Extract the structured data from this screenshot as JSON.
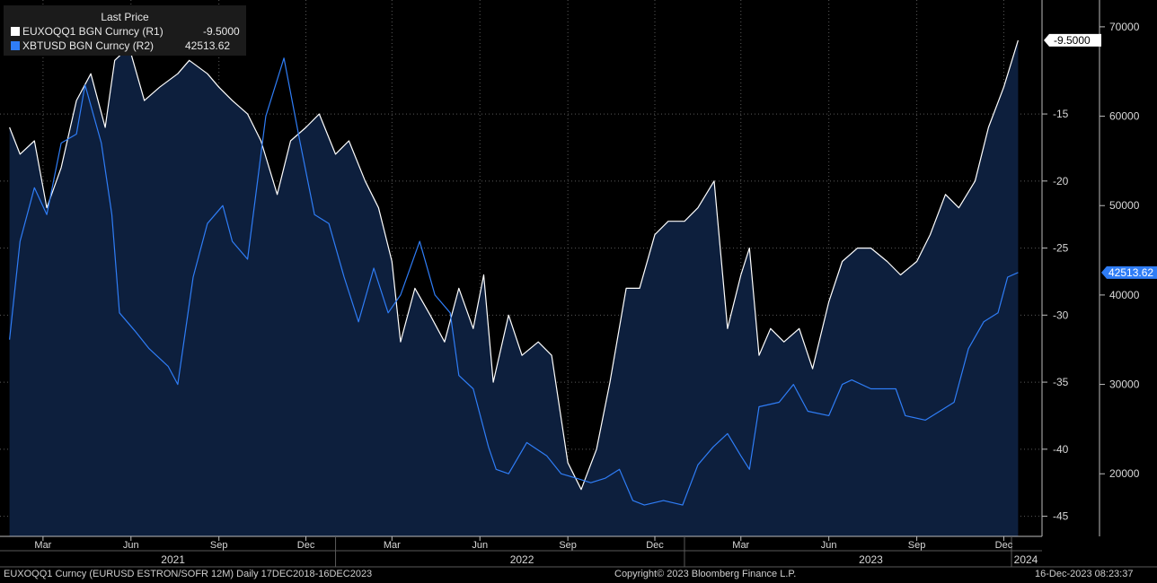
{
  "legend": {
    "header": "Last Price",
    "series1": {
      "label": "EUXOQQ1 BGN Curncy  (R1)",
      "value": "-9.5000",
      "color": "#ffffff"
    },
    "series2": {
      "label": "XBTUSD BGN Curncy  (R2)",
      "value": "42513.62",
      "color": "#2f7df6"
    }
  },
  "footer": {
    "left": "EUXOQQ1 Curncy (EURUSD  ESTRON/SOFR 12M)  Daily 17DEC2018-16DEC2023",
    "center": "Copyright© 2023 Bloomberg Finance L.P.",
    "right": "16-Dec-2023 08:23:37"
  },
  "chart_data": {
    "type": "line",
    "x_month_labels": [
      "Mar",
      "Jun",
      "Sep",
      "Dec",
      "Mar",
      "Jun",
      "Sep",
      "Dec",
      "Mar",
      "Jun",
      "Sep",
      "Dec"
    ],
    "x_year_labels": [
      "2021",
      "2022",
      "2023",
      "2024"
    ],
    "axes": {
      "R1": {
        "ticks": [
          -15,
          -20,
          -25,
          -30,
          -35,
          -40,
          -45
        ],
        "range": [
          -46.5,
          -6.5
        ],
        "last_value_label": "-9.5000"
      },
      "R2": {
        "ticks": [
          70000,
          60000,
          50000,
          40000,
          30000,
          20000
        ],
        "range": [
          13000,
          73000
        ],
        "last_value_label": "42513.62"
      }
    },
    "grid": true,
    "series": [
      {
        "name": "EUXOQQ1 BGN Curncy (R1)",
        "axis": "R1",
        "style": "area",
        "color": "#ffffff",
        "fill": "#0d1f3d",
        "dates": [
          "2021-01-25",
          "2021-02-05",
          "2021-02-20",
          "2021-03-05",
          "2021-03-20",
          "2021-04-05",
          "2021-04-20",
          "2021-05-05",
          "2021-05-15",
          "2021-05-30",
          "2021-06-15",
          "2021-07-01",
          "2021-07-20",
          "2021-08-01",
          "2021-08-20",
          "2021-09-01",
          "2021-09-15",
          "2021-10-01",
          "2021-10-15",
          "2021-11-01",
          "2021-11-15",
          "2021-12-01",
          "2021-12-15",
          "2022-01-01",
          "2022-01-15",
          "2022-02-01",
          "2022-02-15",
          "2022-03-01",
          "2022-03-10",
          "2022-03-25",
          "2022-04-10",
          "2022-04-25",
          "2022-05-10",
          "2022-05-25",
          "2022-06-05",
          "2022-06-15",
          "2022-07-01",
          "2022-07-15",
          "2022-08-01",
          "2022-08-15",
          "2022-09-01",
          "2022-09-15",
          "2022-10-01",
          "2022-10-15",
          "2022-11-01",
          "2022-11-15",
          "2022-12-01",
          "2022-12-15",
          "2023-01-01",
          "2023-01-15",
          "2023-02-01",
          "2023-02-15",
          "2023-03-01",
          "2023-03-10",
          "2023-03-20",
          "2023-04-01",
          "2023-04-15",
          "2023-05-01",
          "2023-05-15",
          "2023-06-01",
          "2023-06-15",
          "2023-07-01",
          "2023-07-15",
          "2023-08-01",
          "2023-08-15",
          "2023-09-01",
          "2023-09-15",
          "2023-10-01",
          "2023-10-15",
          "2023-11-01",
          "2023-11-15",
          "2023-12-01",
          "2023-12-16"
        ],
        "values": [
          -16,
          -18,
          -17,
          -22,
          -19,
          -14,
          -12,
          -16,
          -11,
          -10,
          -14,
          -13,
          -12,
          -11,
          -12,
          -13,
          -14,
          -15,
          -17,
          -21,
          -17,
          -16,
          -15,
          -18,
          -17,
          -20,
          -22,
          -26,
          -32,
          -28,
          -30,
          -32,
          -28,
          -31,
          -27,
          -35,
          -30,
          -33,
          -32,
          -33,
          -41,
          -43,
          -40,
          -35,
          -28,
          -28,
          -24,
          -23,
          -23,
          -22,
          -20,
          -31,
          -27,
          -25,
          -33,
          -31,
          -32,
          -31,
          -34,
          -29,
          -26,
          -25,
          -25,
          -26,
          -27,
          -26,
          -24,
          -21,
          -22,
          -20,
          -16,
          -13,
          -9.5
        ]
      },
      {
        "name": "XBTUSD BGN Curncy (R2)",
        "axis": "R2",
        "style": "line",
        "color": "#2f7df6",
        "dates": [
          "2021-01-25",
          "2021-02-05",
          "2021-02-20",
          "2021-03-05",
          "2021-03-20",
          "2021-04-05",
          "2021-04-14",
          "2021-05-01",
          "2021-05-12",
          "2021-05-20",
          "2021-06-05",
          "2021-06-20",
          "2021-07-10",
          "2021-07-20",
          "2021-08-05",
          "2021-08-20",
          "2021-09-05",
          "2021-09-15",
          "2021-10-01",
          "2021-10-20",
          "2021-11-08",
          "2021-11-25",
          "2021-12-10",
          "2021-12-25",
          "2022-01-10",
          "2022-01-25",
          "2022-02-10",
          "2022-02-25",
          "2022-03-10",
          "2022-03-30",
          "2022-04-15",
          "2022-05-01",
          "2022-05-10",
          "2022-05-25",
          "2022-06-10",
          "2022-06-18",
          "2022-07-01",
          "2022-07-20",
          "2022-08-10",
          "2022-08-25",
          "2022-09-10",
          "2022-09-25",
          "2022-10-10",
          "2022-10-25",
          "2022-11-08",
          "2022-11-20",
          "2022-12-10",
          "2022-12-30",
          "2023-01-15",
          "2023-01-31",
          "2023-02-15",
          "2023-03-01",
          "2023-03-10",
          "2023-03-20",
          "2023-04-10",
          "2023-04-25",
          "2023-05-10",
          "2023-06-01",
          "2023-06-15",
          "2023-06-25",
          "2023-07-15",
          "2023-08-10",
          "2023-08-20",
          "2023-09-10",
          "2023-09-25",
          "2023-10-10",
          "2023-10-25",
          "2023-11-10",
          "2023-11-25",
          "2023-12-05",
          "2023-12-16"
        ],
        "values": [
          35000,
          46000,
          52000,
          49000,
          57000,
          58000,
          63500,
          57000,
          49000,
          38000,
          36000,
          34000,
          32000,
          30000,
          42000,
          48000,
          50000,
          46000,
          44000,
          60000,
          66500,
          57000,
          49000,
          48000,
          42000,
          37000,
          43000,
          38000,
          40000,
          46000,
          40000,
          38000,
          31000,
          29500,
          23000,
          20500,
          20000,
          23500,
          22000,
          20000,
          19500,
          19000,
          19500,
          20500,
          17000,
          16500,
          17000,
          16500,
          21000,
          23000,
          24500,
          22000,
          20500,
          27500,
          28000,
          30000,
          27000,
          26500,
          30000,
          30500,
          29500,
          29500,
          26500,
          26000,
          27000,
          28000,
          34000,
          37000,
          38000,
          42000,
          42513.62
        ]
      }
    ]
  }
}
